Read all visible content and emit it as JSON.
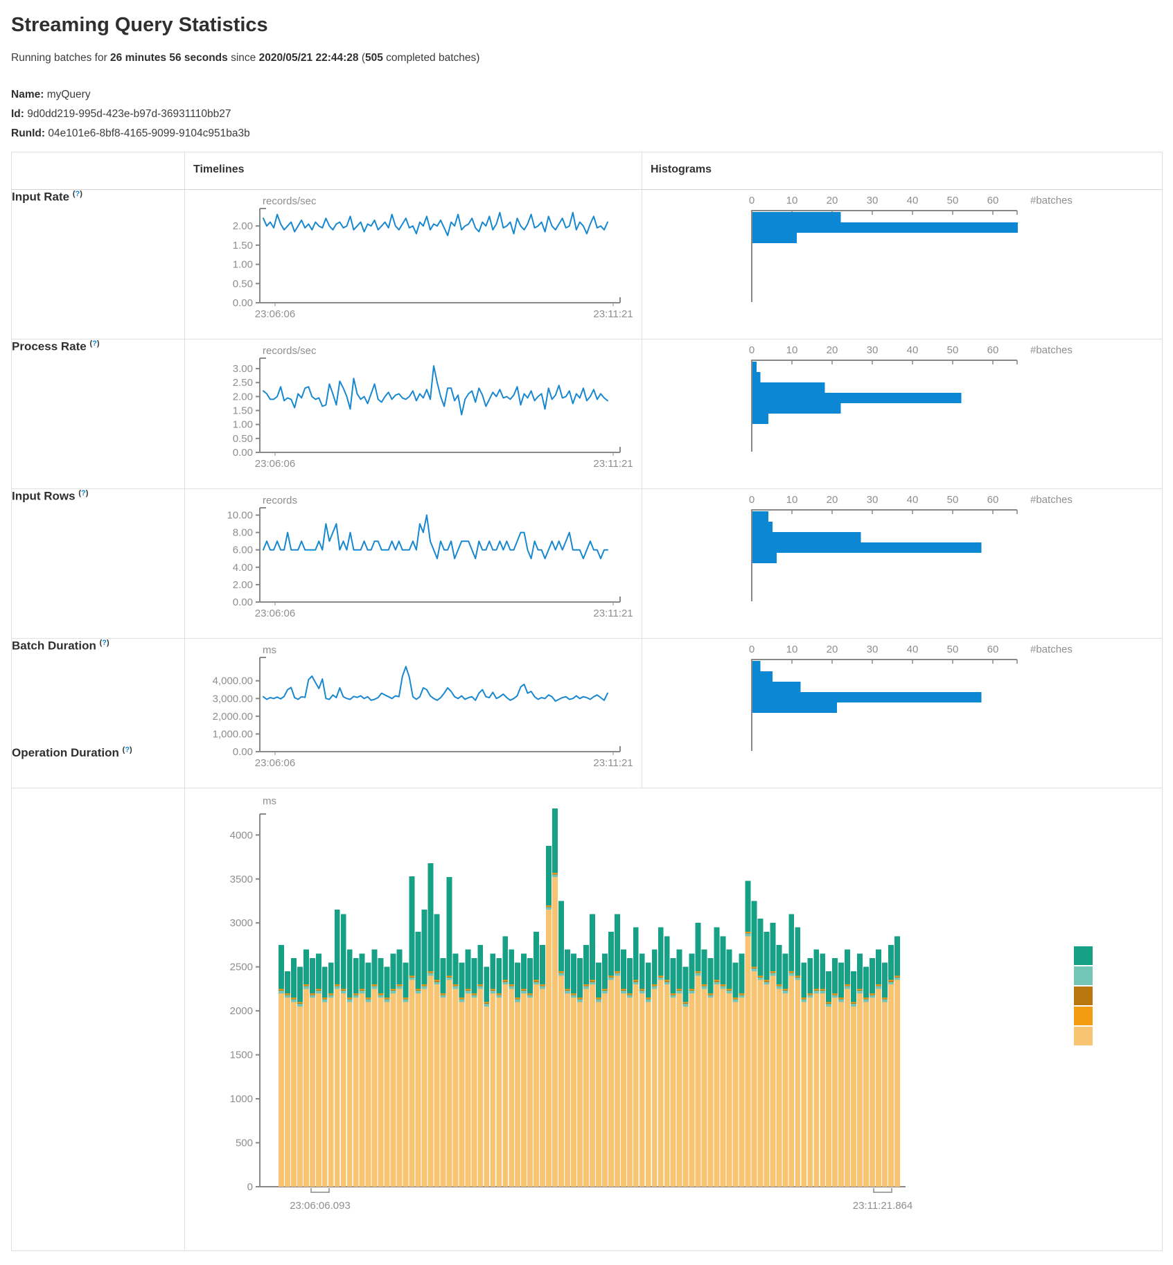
{
  "page": {
    "title": "Streaming Query Statistics",
    "running_line": {
      "prefix": "Running batches for ",
      "duration": "26 minutes 56 seconds",
      "middle": " since ",
      "start_time": "2020/05/21 22:44:28",
      "open_paren": " (",
      "completed_batches": "505",
      "suffix": " completed batches)"
    },
    "query": {
      "name_label": "Name:",
      "name": " myQuery",
      "id_label": "Id:",
      "id": " 9d0dd219-995d-423e-b97d-36931110bb27",
      "runid_label": "RunId:",
      "runid": " 04e101e6-8bf8-4165-9099-9104c951ba3b"
    }
  },
  "table": {
    "col_timelines": "Timelines",
    "col_histograms": "Histograms",
    "help": {
      "open": "(",
      "q": "?",
      "close": ")"
    },
    "rows": [
      {
        "label": "Input Rate"
      },
      {
        "label": "Process Rate"
      },
      {
        "label": "Input Rows"
      },
      {
        "label": "Batch Duration"
      },
      {
        "label": "Operation Duration"
      }
    ]
  },
  "colors": {
    "axis": "#888888",
    "axis_text": "#8e8e8e",
    "timeline_line": "#1787d0",
    "histogram_bar": "#0b87d3",
    "stack": {
      "addBatch": "#f8c471",
      "latestOffset": "#73c6b6",
      "queryPlanning": "#b9770e",
      "walCommit": "#f39c12",
      "trigger": "#16a085"
    },
    "legend_order": [
      "#16a085",
      "#73c6b6",
      "#b9770e",
      "#f39c12",
      "#f8c471"
    ]
  },
  "chart_data": {
    "input_rate_timeline": {
      "type": "line",
      "unit": "records/sec",
      "x_start": "23:06:06",
      "x_end": "23:11:21",
      "y_ticks": [
        0,
        0.5,
        1,
        1.5,
        2
      ],
      "y_tick_labels": [
        "0.00",
        "0.50",
        "1.00",
        "1.50",
        "2.00"
      ],
      "y_axis_max": 2.4,
      "values": [
        2.2,
        2.0,
        2.1,
        1.95,
        2.3,
        2.05,
        1.9,
        2.0,
        2.1,
        1.85,
        2.0,
        2.15,
        1.95,
        2.05,
        1.9,
        2.1,
        2.0,
        1.95,
        2.2,
        2.0,
        1.9,
        2.05,
        2.1,
        1.95,
        2.0,
        2.25,
        1.9,
        2.0,
        2.1,
        1.85,
        2.05,
        2.0,
        2.15,
        1.9,
        2.0,
        2.1,
        1.95,
        2.3,
        2.0,
        1.9,
        2.05,
        2.2,
        1.95,
        2.0,
        1.8,
        2.1,
        2.0,
        2.25,
        1.9,
        2.05,
        2.0,
        2.15,
        1.95,
        1.75,
        2.1,
        2.0,
        2.3,
        1.9,
        2.0,
        2.05,
        2.2,
        1.95,
        1.85,
        2.1,
        2.0,
        2.25,
        1.9,
        2.05,
        2.35,
        1.95,
        2.0,
        2.1,
        1.8,
        2.2,
        2.0,
        1.9,
        2.05,
        2.3,
        1.95,
        2.0,
        2.1,
        1.85,
        2.25,
        2.0,
        1.9,
        2.05,
        2.2,
        1.95,
        2.0,
        2.35,
        1.9,
        2.1,
        2.0,
        1.8,
        2.05,
        2.25,
        1.95,
        2.0,
        1.9,
        2.1
      ]
    },
    "input_rate_histogram": {
      "type": "hbar-hist",
      "xlabel": "#batches",
      "x_ticks": [
        0,
        10,
        20,
        30,
        40,
        50,
        60
      ],
      "bins": [
        22,
        66,
        11
      ]
    },
    "process_rate_timeline": {
      "type": "line",
      "unit": "records/sec",
      "x_start": "23:06:06",
      "x_end": "23:11:21",
      "y_ticks": [
        0,
        0.5,
        1,
        1.5,
        2,
        2.5,
        3
      ],
      "y_tick_labels": [
        "0.00",
        "0.50",
        "1.00",
        "1.50",
        "2.00",
        "2.50",
        "3.00"
      ],
      "y_axis_max": 3.3,
      "values": [
        2.2,
        2.1,
        1.9,
        1.9,
        2.0,
        2.35,
        1.85,
        1.95,
        1.9,
        1.6,
        2.1,
        1.95,
        2.3,
        2.35,
        2.0,
        1.9,
        1.95,
        1.65,
        1.7,
        2.45,
        2.1,
        1.7,
        2.55,
        2.3,
        2.0,
        1.55,
        2.65,
        2.1,
        1.9,
        2.0,
        1.75,
        2.1,
        2.45,
        1.9,
        1.8,
        2.0,
        2.15,
        1.9,
        2.05,
        2.1,
        1.95,
        1.9,
        2.0,
        2.2,
        1.85,
        2.1,
        1.95,
        2.25,
        1.9,
        3.1,
        2.5,
        2.0,
        1.65,
        2.3,
        2.3,
        1.85,
        2.05,
        1.35,
        1.9,
        2.1,
        2.2,
        1.8,
        2.3,
        2.05,
        1.65,
        1.9,
        2.15,
        2.0,
        2.25,
        1.95,
        2.0,
        1.9,
        2.05,
        2.35,
        1.7,
        2.1,
        1.95,
        2.2,
        1.85,
        2.0,
        2.1,
        1.55,
        2.3,
        1.9,
        2.05,
        2.4,
        1.95,
        2.0,
        2.2,
        1.75,
        2.1,
        1.95,
        2.3,
        1.85,
        2.0,
        2.25,
        1.9,
        2.1,
        1.95,
        1.85
      ]
    },
    "process_rate_histogram": {
      "type": "hbar-hist",
      "xlabel": "#batches",
      "x_ticks": [
        0,
        10,
        20,
        30,
        40,
        50,
        60
      ],
      "bins": [
        1,
        2,
        18,
        52,
        22,
        4
      ]
    },
    "input_rows_timeline": {
      "type": "line",
      "unit": "records",
      "x_start": "23:06:06",
      "x_end": "23:11:21",
      "y_ticks": [
        0,
        2,
        4,
        6,
        8,
        10
      ],
      "y_tick_labels": [
        "0.00",
        "2.00",
        "4.00",
        "6.00",
        "8.00",
        "10.00"
      ],
      "y_axis_max": 10.6,
      "values": [
        6,
        7,
        6,
        6,
        7,
        6,
        6,
        8,
        6,
        6,
        6,
        7,
        6,
        6,
        6,
        6,
        7,
        6,
        9,
        7,
        8,
        9,
        6,
        7,
        6,
        8,
        6,
        6,
        6,
        7,
        6,
        6,
        7,
        7,
        6,
        6,
        6,
        7,
        6,
        7,
        6,
        6,
        6,
        7,
        6,
        9,
        8,
        10,
        7,
        6,
        5,
        7,
        6,
        6,
        7,
        5,
        6,
        7,
        7,
        7,
        6,
        5,
        7,
        6,
        6,
        7,
        6,
        6,
        7,
        6,
        7,
        6,
        6,
        7,
        8,
        8,
        6,
        5,
        7,
        6,
        6,
        5,
        6,
        7,
        6,
        7,
        6,
        7,
        8,
        6,
        6,
        6,
        5,
        6,
        7,
        6,
        6,
        5,
        6,
        6
      ]
    },
    "input_rows_histogram": {
      "type": "hbar-hist",
      "xlabel": "#batches",
      "x_ticks": [
        0,
        10,
        20,
        30,
        40,
        50,
        60
      ],
      "bins": [
        4,
        5,
        27,
        57,
        6
      ]
    },
    "batch_duration_timeline": {
      "type": "line",
      "unit": "ms",
      "x_start": "23:06:06",
      "x_end": "23:11:21",
      "y_ticks": [
        0,
        1000,
        2000,
        3000,
        4000
      ],
      "y_tick_labels": [
        "0.00",
        "1,000.00",
        "2,000.00",
        "3,000.00",
        "4,000.00"
      ],
      "y_axis_max": 5200,
      "values": [
        3100,
        2950,
        3050,
        3000,
        3080,
        2980,
        3120,
        3500,
        3620,
        3050,
        2950,
        3100,
        3060,
        4060,
        4260,
        3900,
        3560,
        4100,
        3000,
        2950,
        3200,
        3050,
        3600,
        3100,
        3000,
        2950,
        3120,
        3060,
        3150,
        3000,
        3100,
        2900,
        2950,
        3050,
        3300,
        3200,
        3100,
        3000,
        3150,
        3100,
        4250,
        4800,
        4200,
        3100,
        2950,
        3100,
        3600,
        3500,
        3150,
        3000,
        2900,
        3050,
        3300,
        3600,
        3400,
        3100,
        3000,
        3150,
        2950,
        3050,
        3100,
        2900,
        3300,
        3500,
        3100,
        3050,
        3350,
        3000,
        3100,
        3250,
        3050,
        2900,
        3000,
        3150,
        3650,
        3800,
        3300,
        3400,
        3100,
        2950,
        3050,
        3000,
        3200,
        3100,
        2850,
        2950,
        3050,
        3100,
        2950,
        3000,
        3150,
        3000,
        3100,
        3050,
        2950,
        3100,
        3200,
        3050,
        2900,
        3300
      ]
    },
    "batch_duration_histogram": {
      "type": "hbar-hist",
      "xlabel": "#batches",
      "x_ticks": [
        0,
        10,
        20,
        30,
        40,
        50,
        60
      ],
      "bins": [
        2,
        5,
        12,
        57,
        21
      ]
    },
    "operation_duration": {
      "type": "stacked-bar",
      "unit": "ms",
      "x_start": "23:06:06.093",
      "x_end": "23:11:21.864",
      "y_ticks": [
        0,
        500,
        1000,
        1500,
        2000,
        2500,
        3000,
        3500,
        4000
      ],
      "y_tick_labels": [
        "0",
        "500",
        "1000",
        "1500",
        "2000",
        "2500",
        "3000",
        "3500",
        "4000"
      ],
      "y_axis_max": 4215,
      "minor_series_order": [
        "latestOffset",
        "queryPlanning",
        "walCommit"
      ],
      "minor_values": {
        "latestOffset": 30,
        "queryPlanning": 8,
        "walCommit": 12
      },
      "addBatch": [
        2200,
        2150,
        2100,
        2050,
        2250,
        2150,
        2200,
        2100,
        2150,
        2250,
        2200,
        2100,
        2150,
        2200,
        2100,
        2250,
        2150,
        2100,
        2200,
        2250,
        2100,
        2350,
        2200,
        2250,
        2400,
        2300,
        2150,
        2350,
        2250,
        2100,
        2200,
        2150,
        2250,
        2050,
        2200,
        2150,
        2300,
        2250,
        2100,
        2200,
        2150,
        2300,
        2250,
        3150,
        3520,
        2400,
        2200,
        2150,
        2100,
        2250,
        2300,
        2100,
        2200,
        2350,
        2400,
        2200,
        2150,
        2300,
        2200,
        2100,
        2250,
        2350,
        2300,
        2150,
        2200,
        2050,
        2200,
        2400,
        2250,
        2150,
        2300,
        2250,
        2200,
        2100,
        2150,
        2850,
        2450,
        2350,
        2300,
        2400,
        2250,
        2200,
        2400,
        2350,
        2100,
        2150,
        2200,
        2200,
        2050,
        2150,
        2100,
        2250,
        2050,
        2200,
        2100,
        2150,
        2250,
        2100,
        2300,
        2350
      ],
      "totals": [
        2750,
        2450,
        2600,
        2500,
        2700,
        2600,
        2650,
        2500,
        2550,
        3150,
        3100,
        2700,
        2600,
        2650,
        2550,
        2700,
        2600,
        2500,
        2650,
        2700,
        2550,
        3530,
        2900,
        3150,
        3680,
        3100,
        2600,
        3520,
        2650,
        2550,
        2700,
        2600,
        2750,
        2500,
        2650,
        2600,
        2850,
        2700,
        2550,
        2650,
        2600,
        2900,
        2750,
        3878,
        4300,
        3250,
        2700,
        2650,
        2600,
        2750,
        3100,
        2550,
        2650,
        2900,
        3100,
        2700,
        2600,
        2950,
        2650,
        2550,
        2700,
        2950,
        2850,
        2600,
        2700,
        2500,
        2650,
        3000,
        2700,
        2600,
        2950,
        2850,
        2700,
        2550,
        2650,
        3480,
        3250,
        3050,
        2900,
        3000,
        2750,
        2650,
        3100,
        2950,
        2550,
        2600,
        2700,
        2650,
        2450,
        2600,
        2550,
        2700,
        2450,
        2650,
        2500,
        2600,
        2700,
        2550,
        2750,
        2850
      ]
    }
  }
}
